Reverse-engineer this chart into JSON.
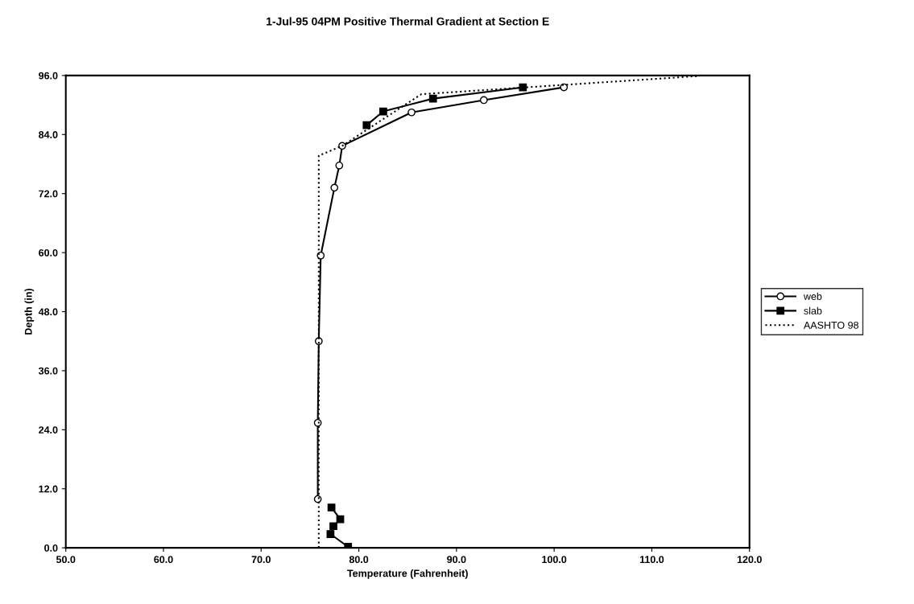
{
  "chart_data": {
    "type": "line",
    "title": "1-Jul-95 04PM Positive Thermal Gradient at Section E",
    "xlabel": "Temperature (Fahrenheit)",
    "ylabel": "Depth (in)",
    "xlim": [
      50,
      120
    ],
    "xticks": [
      {
        "value": 50,
        "label": "50.0"
      },
      {
        "value": 60,
        "label": "60.0"
      },
      {
        "value": 70,
        "label": "70.0"
      },
      {
        "value": 80,
        "label": "80.0"
      },
      {
        "value": 90,
        "label": "90.0"
      },
      {
        "value": 100,
        "label": "100.0"
      },
      {
        "value": 110,
        "label": "110.0"
      },
      {
        "value": 120,
        "label": "120.0"
      }
    ],
    "ylim": [
      0,
      96
    ],
    "yticks": [
      {
        "value": 0,
        "label": "0.0"
      },
      {
        "value": 12,
        "label": "12.0"
      },
      {
        "value": 24,
        "label": "24.0"
      },
      {
        "value": 36,
        "label": "36.0"
      },
      {
        "value": 48,
        "label": "48.0"
      },
      {
        "value": 60,
        "label": "60.0"
      },
      {
        "value": 72,
        "label": "72.0"
      },
      {
        "value": 84,
        "label": "84.0"
      },
      {
        "value": 96,
        "label": "96.0"
      }
    ],
    "grid": false,
    "legend": "right",
    "series": [
      {
        "name": "web",
        "color": "#000000",
        "marker": "circle",
        "line_style": "solid",
        "x": [
          75.8,
          75.8,
          75.9,
          76.1,
          77.5,
          78.0,
          78.3,
          85.4,
          92.8,
          101.0
        ],
        "values": [
          9.9,
          25.4,
          42.0,
          59.4,
          73.2,
          77.7,
          81.7,
          88.5,
          91.0,
          93.6
        ]
      },
      {
        "name": "slab",
        "color": "#000000",
        "marker": "square",
        "line_style": "solid",
        "x": [
          78.9,
          77.1,
          77.4,
          78.1,
          77.2,
          null,
          80.8,
          82.5,
          87.6,
          96.8
        ],
        "values": [
          0.2,
          2.8,
          4.4,
          5.8,
          8.2,
          null,
          85.9,
          88.7,
          91.3,
          93.6
        ]
      },
      {
        "name": "AASHTO 98",
        "color": "#000000",
        "marker": "none",
        "line_style": "dotted",
        "x": [
          75.9,
          75.9,
          78.3,
          86.4,
          114.9
        ],
        "values": [
          0,
          79.7,
          81.7,
          92.2,
          95.9
        ]
      }
    ]
  }
}
